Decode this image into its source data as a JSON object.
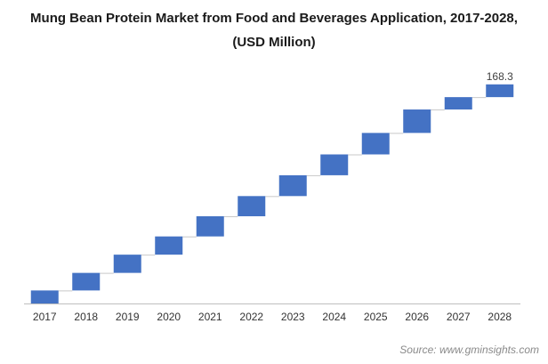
{
  "chart_data": {
    "type": "bar",
    "subtype": "waterfall",
    "title_line1": "Mung Bean Protein Market from Food and Beverages Application, 2017-2028,",
    "title_line2": "(USD Million)",
    "categories": [
      "2017",
      "2018",
      "2019",
      "2020",
      "2021",
      "2022",
      "2023",
      "2024",
      "2025",
      "2026",
      "2027",
      "2028"
    ],
    "series": [
      {
        "cumulative_values": [
          10.0,
          23.5,
          37.5,
          51.5,
          67.0,
          82.5,
          98.5,
          114.5,
          131.0,
          149.0,
          158.5,
          168.3
        ],
        "increments": [
          10.0,
          13.5,
          14.0,
          14.0,
          15.5,
          15.5,
          16.0,
          16.0,
          16.5,
          18.0,
          9.5,
          9.8
        ],
        "color": "#4472C4"
      }
    ],
    "data_labels": [
      {
        "category": "2028",
        "text": "168.3"
      }
    ],
    "xlabel": "",
    "ylabel": "",
    "ylim": [
      0,
      175
    ],
    "grid": false,
    "legend": false,
    "connector_color": "#c8c8c8",
    "axis_color": "#bfbfbf"
  },
  "source_text": "Source: www.gminsights.com"
}
